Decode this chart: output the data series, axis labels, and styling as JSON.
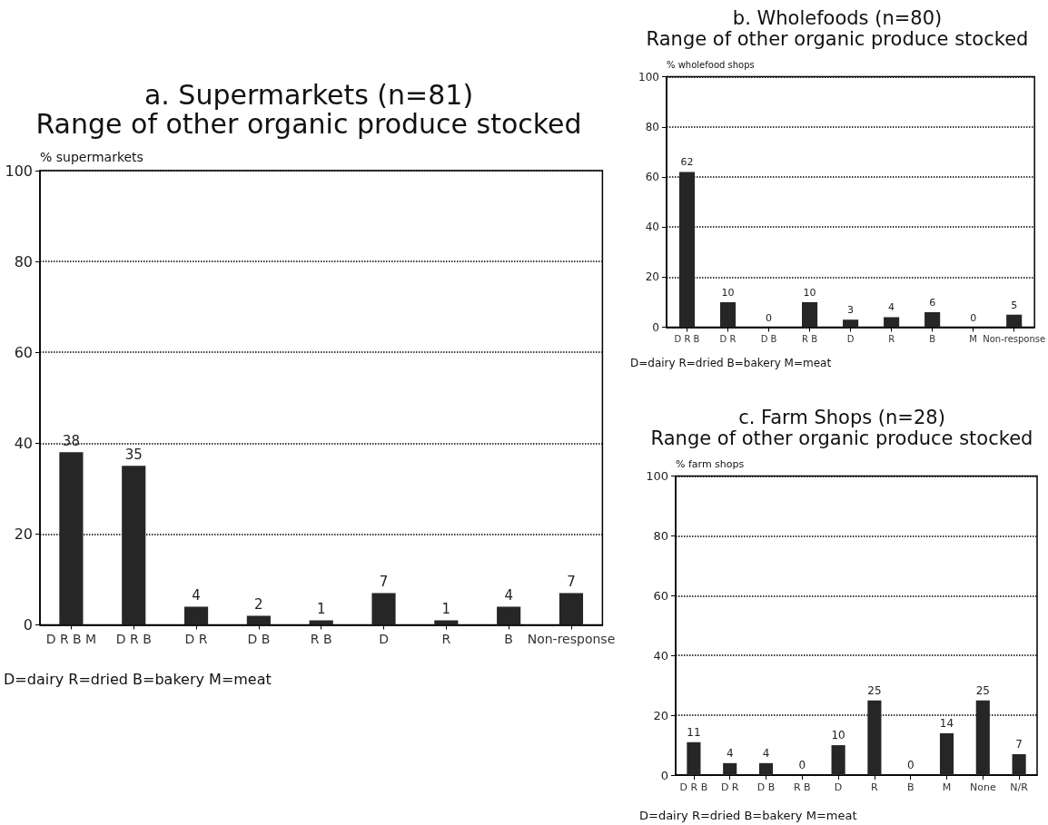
{
  "chart_data": [
    {
      "type": "bar",
      "title": "a. Supermarkets (n=81)",
      "subtitle": "Range of other organic produce stocked",
      "ylabel": "% supermarkets",
      "categories": [
        "D R B M",
        "D R B",
        "D R",
        "D B",
        "R B",
        "D",
        "R",
        "B",
        "Non-response"
      ],
      "values": [
        38,
        35,
        4,
        2,
        1,
        7,
        1,
        4,
        7
      ],
      "color": "#262626",
      "ylim": [
        0,
        100
      ],
      "yticks": [
        0,
        20,
        40,
        60,
        80,
        100
      ],
      "grid": "y",
      "data_labels": true,
      "annotations": [
        "D=dairy R=dried B=bakery M=meat"
      ]
    },
    {
      "type": "bar",
      "title": "b. Wholefoods (n=80)",
      "subtitle": "Range of other organic produce stocked",
      "ylabel": "% wholefood shops",
      "categories": [
        "D R B",
        "D R",
        "D B",
        "R B",
        "D",
        "R",
        "B",
        "M",
        "Non-response"
      ],
      "values": [
        62,
        10,
        0,
        10,
        3,
        4,
        6,
        0,
        5
      ],
      "color": "#262626",
      "ylim": [
        0,
        100
      ],
      "yticks": [
        0,
        20,
        40,
        60,
        80,
        100
      ],
      "grid": "y",
      "data_labels": true,
      "annotations": [
        "D=dairy R=dried B=bakery M=meat"
      ]
    },
    {
      "type": "bar",
      "title": "c. Farm Shops (n=28)",
      "subtitle": "Range of other organic produce stocked",
      "ylabel": "% farm shops",
      "categories": [
        "D R B",
        "D R",
        "D B",
        "R B",
        "D",
        "R",
        "B",
        "M",
        "None",
        "N/R"
      ],
      "values": [
        11,
        4,
        4,
        0,
        10,
        25,
        0,
        14,
        25,
        7
      ],
      "color": "#262626",
      "ylim": [
        0,
        100
      ],
      "yticks": [
        0,
        20,
        40,
        60,
        80,
        100
      ],
      "grid": "y",
      "data_labels": true,
      "annotations": [
        "D=dairy R=dried B=bakery M=meat"
      ]
    }
  ]
}
